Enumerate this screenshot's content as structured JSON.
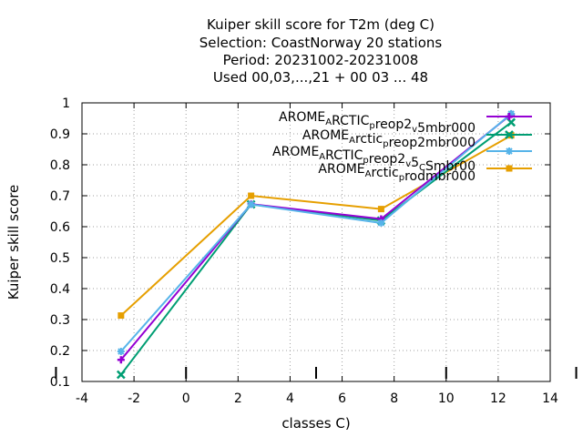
{
  "chart_data": {
    "type": "line",
    "title_lines": [
      "Kuiper skill score  for T2m (deg C)",
      "Selection: CoastNorway     20 stations",
      "Period: 20231002-20231008",
      "Used  00,03,...,21  + 00 03 ... 48"
    ],
    "xlabel": "classes C)",
    "ylabel": "Kuiper skill score",
    "xlim": [
      -4,
      14
    ],
    "ylim": [
      0.1,
      1.0
    ],
    "xticks": [
      -4,
      -2,
      0,
      2,
      4,
      6,
      8,
      10,
      12,
      14
    ],
    "yticks": [
      0.1,
      0.2,
      0.3,
      0.4,
      0.5,
      0.6,
      0.7,
      0.8,
      0.9,
      1.0
    ],
    "xtick_labels": [
      "-4",
      "-2",
      "0",
      "2",
      "4",
      "6",
      "8",
      "10",
      "12",
      "14"
    ],
    "ytick_labels": [
      "0.1",
      "0.2",
      "0.3",
      "0.4",
      "0.5",
      "0.6",
      "0.7",
      "0.8",
      "0.9",
      "1"
    ],
    "grid": true,
    "legend_position": "top-right",
    "count_marks_x": [
      -5,
      0,
      5,
      10,
      15
    ],
    "series": [
      {
        "legend": [
          [
            "AROME",
            "base"
          ],
          [
            "A",
            "sub"
          ],
          [
            "RCTIC",
            "base"
          ],
          [
            "p",
            "sub"
          ],
          [
            "reop2",
            "base"
          ],
          [
            "v",
            "sub"
          ],
          [
            "5mbr000",
            "base"
          ]
        ],
        "color": "#9400d3",
        "marker": "plus",
        "x": [
          -2.5,
          2.5,
          7.5,
          12.5
        ],
        "y": [
          0.17,
          0.673,
          0.625,
          0.963
        ]
      },
      {
        "legend": [
          [
            "AROME",
            "base"
          ],
          [
            "A",
            "sub"
          ],
          [
            "rctic",
            "base"
          ],
          [
            "p",
            "sub"
          ],
          [
            "reop2mbr000",
            "base"
          ]
        ],
        "color": "#009e73",
        "marker": "cross",
        "x": [
          -2.5,
          2.5,
          7.5,
          12.5
        ],
        "y": [
          0.122,
          0.672,
          0.62,
          0.937
        ]
      },
      {
        "legend": [
          [
            "AROME",
            "base"
          ],
          [
            "A",
            "sub"
          ],
          [
            "RCTIC",
            "base"
          ],
          [
            "p",
            "sub"
          ],
          [
            "reop2",
            "base"
          ],
          [
            "v",
            "sub"
          ],
          [
            "5",
            "base"
          ],
          [
            "C",
            "sub"
          ],
          [
            "Smbr00",
            "base"
          ]
        ],
        "color": "#56b4e9",
        "marker": "star",
        "x": [
          -2.5,
          2.5,
          7.5,
          12.5
        ],
        "y": [
          0.197,
          0.672,
          0.612,
          0.965
        ]
      },
      {
        "legend": [
          [
            "AROME",
            "base"
          ],
          [
            "A",
            "sub"
          ],
          [
            "rctic",
            "base"
          ],
          [
            "p",
            "sub"
          ],
          [
            "rodmbr000",
            "base"
          ]
        ],
        "color": "#e69f00",
        "marker": "box",
        "x": [
          -2.5,
          2.5,
          7.5,
          12.5
        ],
        "y": [
          0.313,
          0.7,
          0.657,
          0.895
        ]
      }
    ]
  }
}
